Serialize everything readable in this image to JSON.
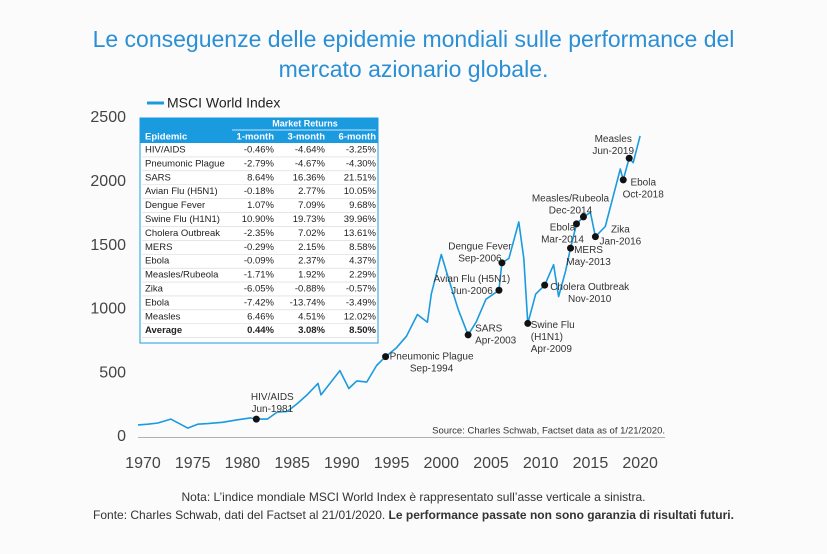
{
  "chart_data": {
    "type": "line",
    "title": "Le conseguenze delle epidemie mondiali sulle performance del mercato azionario globale.",
    "xlim": [
      1969.5,
      2022.5
    ],
    "xticks": [
      1970,
      1975,
      1980,
      1985,
      1990,
      1995,
      2000,
      2005,
      2010,
      2015,
      2020
    ],
    "ylim": [
      0,
      2500
    ],
    "yticks": [
      0,
      500,
      1000,
      1500,
      2000,
      2500
    ],
    "grid": false,
    "legend": "top-left",
    "x": [
      1969.5,
      1970.5,
      1971.5,
      1972.8,
      1974.5,
      1975.5,
      1976.5,
      1978,
      1979.5,
      1980.8,
      1981.4,
      1982.5,
      1983.5,
      1984.5,
      1985.5,
      1986.5,
      1987.6,
      1987.9,
      1989.8,
      1990.7,
      1991.5,
      1992.5,
      1993.5,
      1994.4,
      1995.5,
      1996.5,
      1997.6,
      1998.6,
      1999.0,
      2000.0,
      2000.7,
      2001.7,
      2002.7,
      2003.5,
      2004.5,
      2005.8,
      2006.1,
      2006.8,
      2007.8,
      2008.3,
      2008.7,
      2009.5,
      2010.4,
      2011.3,
      2011.8,
      2012.5,
      2013.0,
      2013.6,
      2014.3,
      2015.0,
      2015.5,
      2016.5,
      2017.5,
      2018.0,
      2018.3,
      2018.9,
      2019.3,
      2020.0
    ],
    "series": [
      {
        "name": "MSCI World Index",
        "color": "#1a9be0",
        "values": [
          95,
          100,
          110,
          140,
          70,
          100,
          105,
          115,
          135,
          150,
          140,
          140,
          195,
          200,
          260,
          330,
          420,
          330,
          520,
          380,
          440,
          430,
          560,
          630,
          700,
          790,
          960,
          900,
          1120,
          1430,
          1250,
          1000,
          800,
          900,
          1080,
          1150,
          1365,
          1400,
          1685,
          1400,
          890,
          1120,
          1190,
          1350,
          1100,
          1300,
          1480,
          1670,
          1725,
          1760,
          1570,
          1650,
          1950,
          2100,
          2015,
          2185,
          2150,
          2360
        ]
      }
    ],
    "annotations": [
      {
        "x": 1981.4,
        "y": 140,
        "lines": [
          "HIV/AIDS",
          "Jun-1981"
        ]
      },
      {
        "x": 1994.4,
        "y": 630,
        "lines": [
          "Pneumonic Plague",
          "Sep-1994"
        ]
      },
      {
        "x": 2002.7,
        "y": 800,
        "lines": [
          "SARS",
          "Apr-2003"
        ]
      },
      {
        "x": 2005.8,
        "y": 1150,
        "lines": [
          "Avian Flu (H5N1)",
          "Jun-2006"
        ]
      },
      {
        "x": 2006.1,
        "y": 1365,
        "lines": [
          "Dengue Fever",
          "Sep-2006"
        ]
      },
      {
        "x": 2008.7,
        "y": 890,
        "lines": [
          "Swine Flu",
          "(H1N1)",
          "Apr-2009"
        ]
      },
      {
        "x": 2010.4,
        "y": 1190,
        "lines": [
          "Cholera Outbreak",
          "Nov-2010"
        ]
      },
      {
        "x": 2013.0,
        "y": 1480,
        "lines": [
          "MERS",
          "May-2013"
        ]
      },
      {
        "x": 2013.6,
        "y": 1670,
        "lines": [
          "Ebola",
          "Mar-2014"
        ]
      },
      {
        "x": 2014.3,
        "y": 1725,
        "lines": [
          "Measles/Rubeola",
          "Dec-2014"
        ]
      },
      {
        "x": 2015.5,
        "y": 1570,
        "lines": [
          "Zika",
          "Jan-2016"
        ]
      },
      {
        "x": 2018.3,
        "y": 2015,
        "lines": [
          "Ebola",
          "Oct-2018"
        ]
      },
      {
        "x": 2018.9,
        "y": 2185,
        "lines": [
          "Measles",
          "Jun-2019"
        ]
      }
    ],
    "table": {
      "group_header": "Market Returns",
      "columns": [
        "Epidemic",
        "1-month",
        "3-month",
        "6-month"
      ],
      "rows": [
        [
          "HIV/AIDS",
          "-0.46%",
          "-4.64%",
          "-3.25%"
        ],
        [
          "Pneumonic Plague",
          "-2.79%",
          "-4.67%",
          "-4.30%"
        ],
        [
          "SARS",
          "8.64%",
          "16.36%",
          "21.51%"
        ],
        [
          "Avian Flu (H5N1)",
          "-0.18%",
          "2.77%",
          "10.05%"
        ],
        [
          "Dengue Fever",
          "1.07%",
          "7.09%",
          "9.68%"
        ],
        [
          "Swine Flu (H1N1)",
          "10.90%",
          "19.73%",
          "39.96%"
        ],
        [
          "Cholera Outbreak",
          "-2.35%",
          "7.02%",
          "13.61%"
        ],
        [
          "MERS",
          "-0.29%",
          "2.15%",
          "8.58%"
        ],
        [
          "Ebola",
          "-0.09%",
          "2.37%",
          "4.37%"
        ],
        [
          "Measles/Rubeola",
          "-1.71%",
          "1.92%",
          "2.29%"
        ],
        [
          "Zika",
          "-6.05%",
          "-0.88%",
          "-0.57%"
        ],
        [
          "Ebola",
          "-7.42%",
          "-13.74%",
          "-3.49%"
        ],
        [
          "Measles",
          "6.46%",
          "4.51%",
          "12.02%"
        ],
        [
          "Average",
          "0.44%",
          "3.08%",
          "8.50%"
        ]
      ]
    },
    "source": "Source: Charles Schwab, Factset data as of 1/21/2020.",
    "note": "Nota: L’indice mondiale MSCI World Index è rappresentato sull’asse verticale a sinistra.",
    "source_note": "Fonte: Charles Schwab, dati del Factset al 21/01/2020.",
    "disclaimer": "Le performance passate non sono garanzia di risultati futuri."
  }
}
